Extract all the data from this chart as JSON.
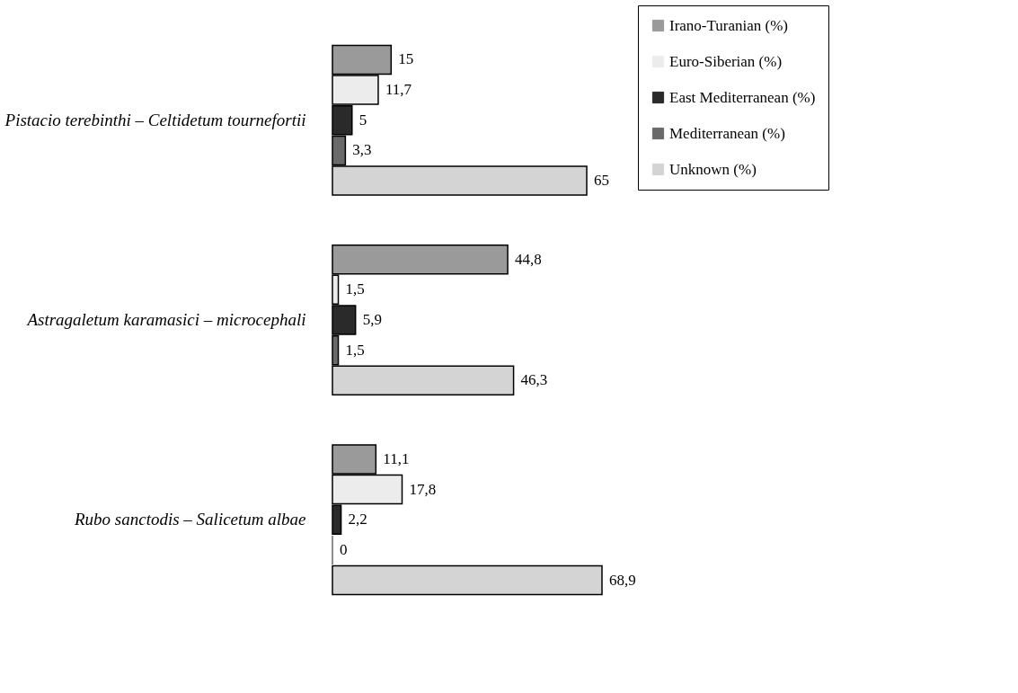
{
  "chart_data": {
    "type": "bar",
    "orientation": "horizontal",
    "categories": [
      "Pistacio terebinthi – Celtidetum tournefortii",
      "Astragaletum karamasici – microcephali",
      "Rubo sanctodis – Salicetum albae"
    ],
    "series": [
      {
        "name": "Irano-Turanian (%)",
        "color": "#9a9a9a",
        "values": [
          15,
          44.8,
          11.1
        ],
        "value_labels": [
          "15",
          "44,8",
          "11,1"
        ]
      },
      {
        "name": "Euro-Siberian (%)",
        "color": "#ececec",
        "values": [
          11.7,
          1.5,
          17.8
        ],
        "value_labels": [
          "11,7",
          "1,5",
          "17,8"
        ]
      },
      {
        "name": "East Mediterranean (%)",
        "color": "#2a2a2a",
        "values": [
          5,
          5.9,
          2.2
        ],
        "value_labels": [
          "5",
          "5,9",
          "2,2"
        ]
      },
      {
        "name": "Mediterranean (%)",
        "color": "#6a6a6a",
        "values": [
          3.3,
          1.5,
          0
        ],
        "value_labels": [
          "3,3",
          "1,5",
          "0"
        ]
      },
      {
        "name": "Unknown (%)",
        "color": "#d4d4d4",
        "values": [
          65,
          46.3,
          68.9
        ],
        "value_labels": [
          "65",
          "46,3",
          "68,9"
        ]
      }
    ],
    "legend": "right",
    "grid": false,
    "tick_labels": "y"
  }
}
